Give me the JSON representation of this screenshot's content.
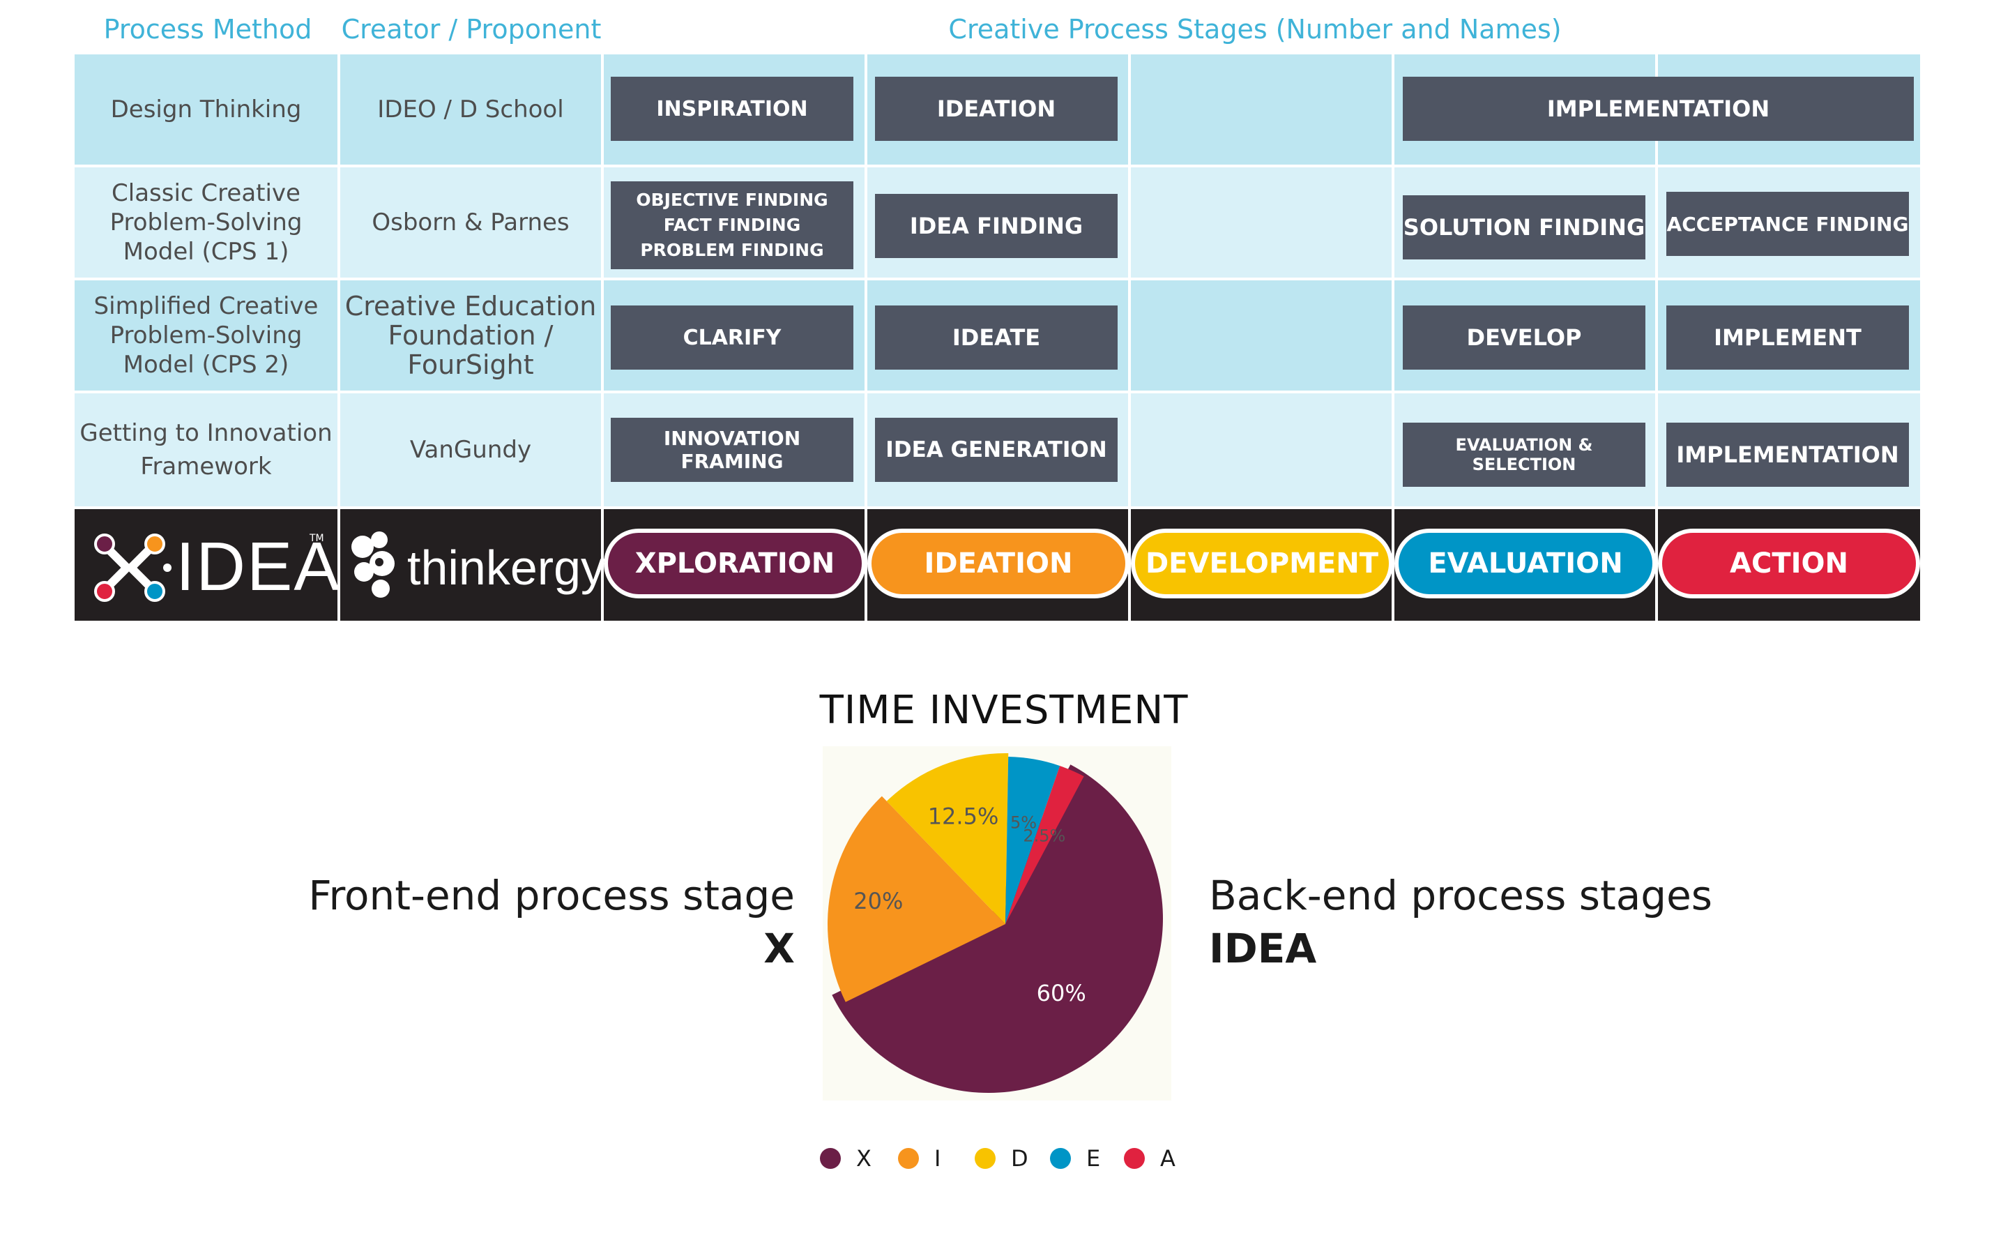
{
  "headers": {
    "method": "Process Method",
    "creator": "Creator / Proponent",
    "stages": "Creative Process Stages (Number and Names)"
  },
  "rows": [
    {
      "method": "Design Thinking",
      "creator": "IDEO / D School",
      "stages": [
        "INSPIRATION",
        "IDEATION",
        "IMPLEMENTATION"
      ]
    },
    {
      "method": "Classic Creative\nProblem-Solving\nModel (CPS 1)",
      "creator": "Osborn & Parnes",
      "stages": [
        "OBJECTIVE FINDING\nFACT FINDING\nPROBLEM FINDING",
        "IDEA FINDING",
        "SOLUTION FINDING",
        "ACCEPTANCE FINDING"
      ]
    },
    {
      "method": "Simplified Creative\nProblem-Solving\nModel (CPS 2)",
      "creator": "Creative Education\nFoundation /\nFourSight",
      "stages": [
        "CLARIFY",
        "IDEATE",
        "DEVELOP",
        "IMPLEMENT"
      ]
    },
    {
      "method": "Getting to Innovation\nFramework",
      "creator": "VanGundy",
      "stages": [
        "INNOVATION FRAMING",
        "IDEA GENERATION",
        "EVALUATION & SELECTION",
        "IMPLEMENTATION"
      ]
    }
  ],
  "brand": {
    "xidea_logo_text": "IDEA",
    "xidea_tm": "TM",
    "thinkergy_logo_text": "thinkergy"
  },
  "idea_stages": [
    {
      "label": "XPLORATION",
      "color": "#6b1f47"
    },
    {
      "label": "IDEATION",
      "color": "#f7941d"
    },
    {
      "label": "DEVELOPMENT",
      "color": "#f8c300"
    },
    {
      "label": "EVALUATION",
      "color": "#0095c6"
    },
    {
      "label": "ACTION",
      "color": "#e0223f"
    }
  ],
  "side_labels": {
    "front": "Front-end process stage",
    "front_bold": "X",
    "back": "Back-end process stages",
    "back_bold": "IDEA"
  },
  "chart_data": {
    "type": "pie",
    "title": "TIME INVESTMENT",
    "categories": [
      "X",
      "I",
      "D",
      "E",
      "A"
    ],
    "values": [
      60,
      20,
      12.5,
      5,
      2.5
    ],
    "labels": [
      "60%",
      "20%",
      "12.5%",
      "5%",
      "2.5%"
    ],
    "colors": [
      "#6b1f47",
      "#f7941d",
      "#f8c300",
      "#0095c6",
      "#e0223f"
    ],
    "legend": [
      "X",
      "I",
      "D",
      "E",
      "A"
    ],
    "legend_position": "bottom"
  }
}
